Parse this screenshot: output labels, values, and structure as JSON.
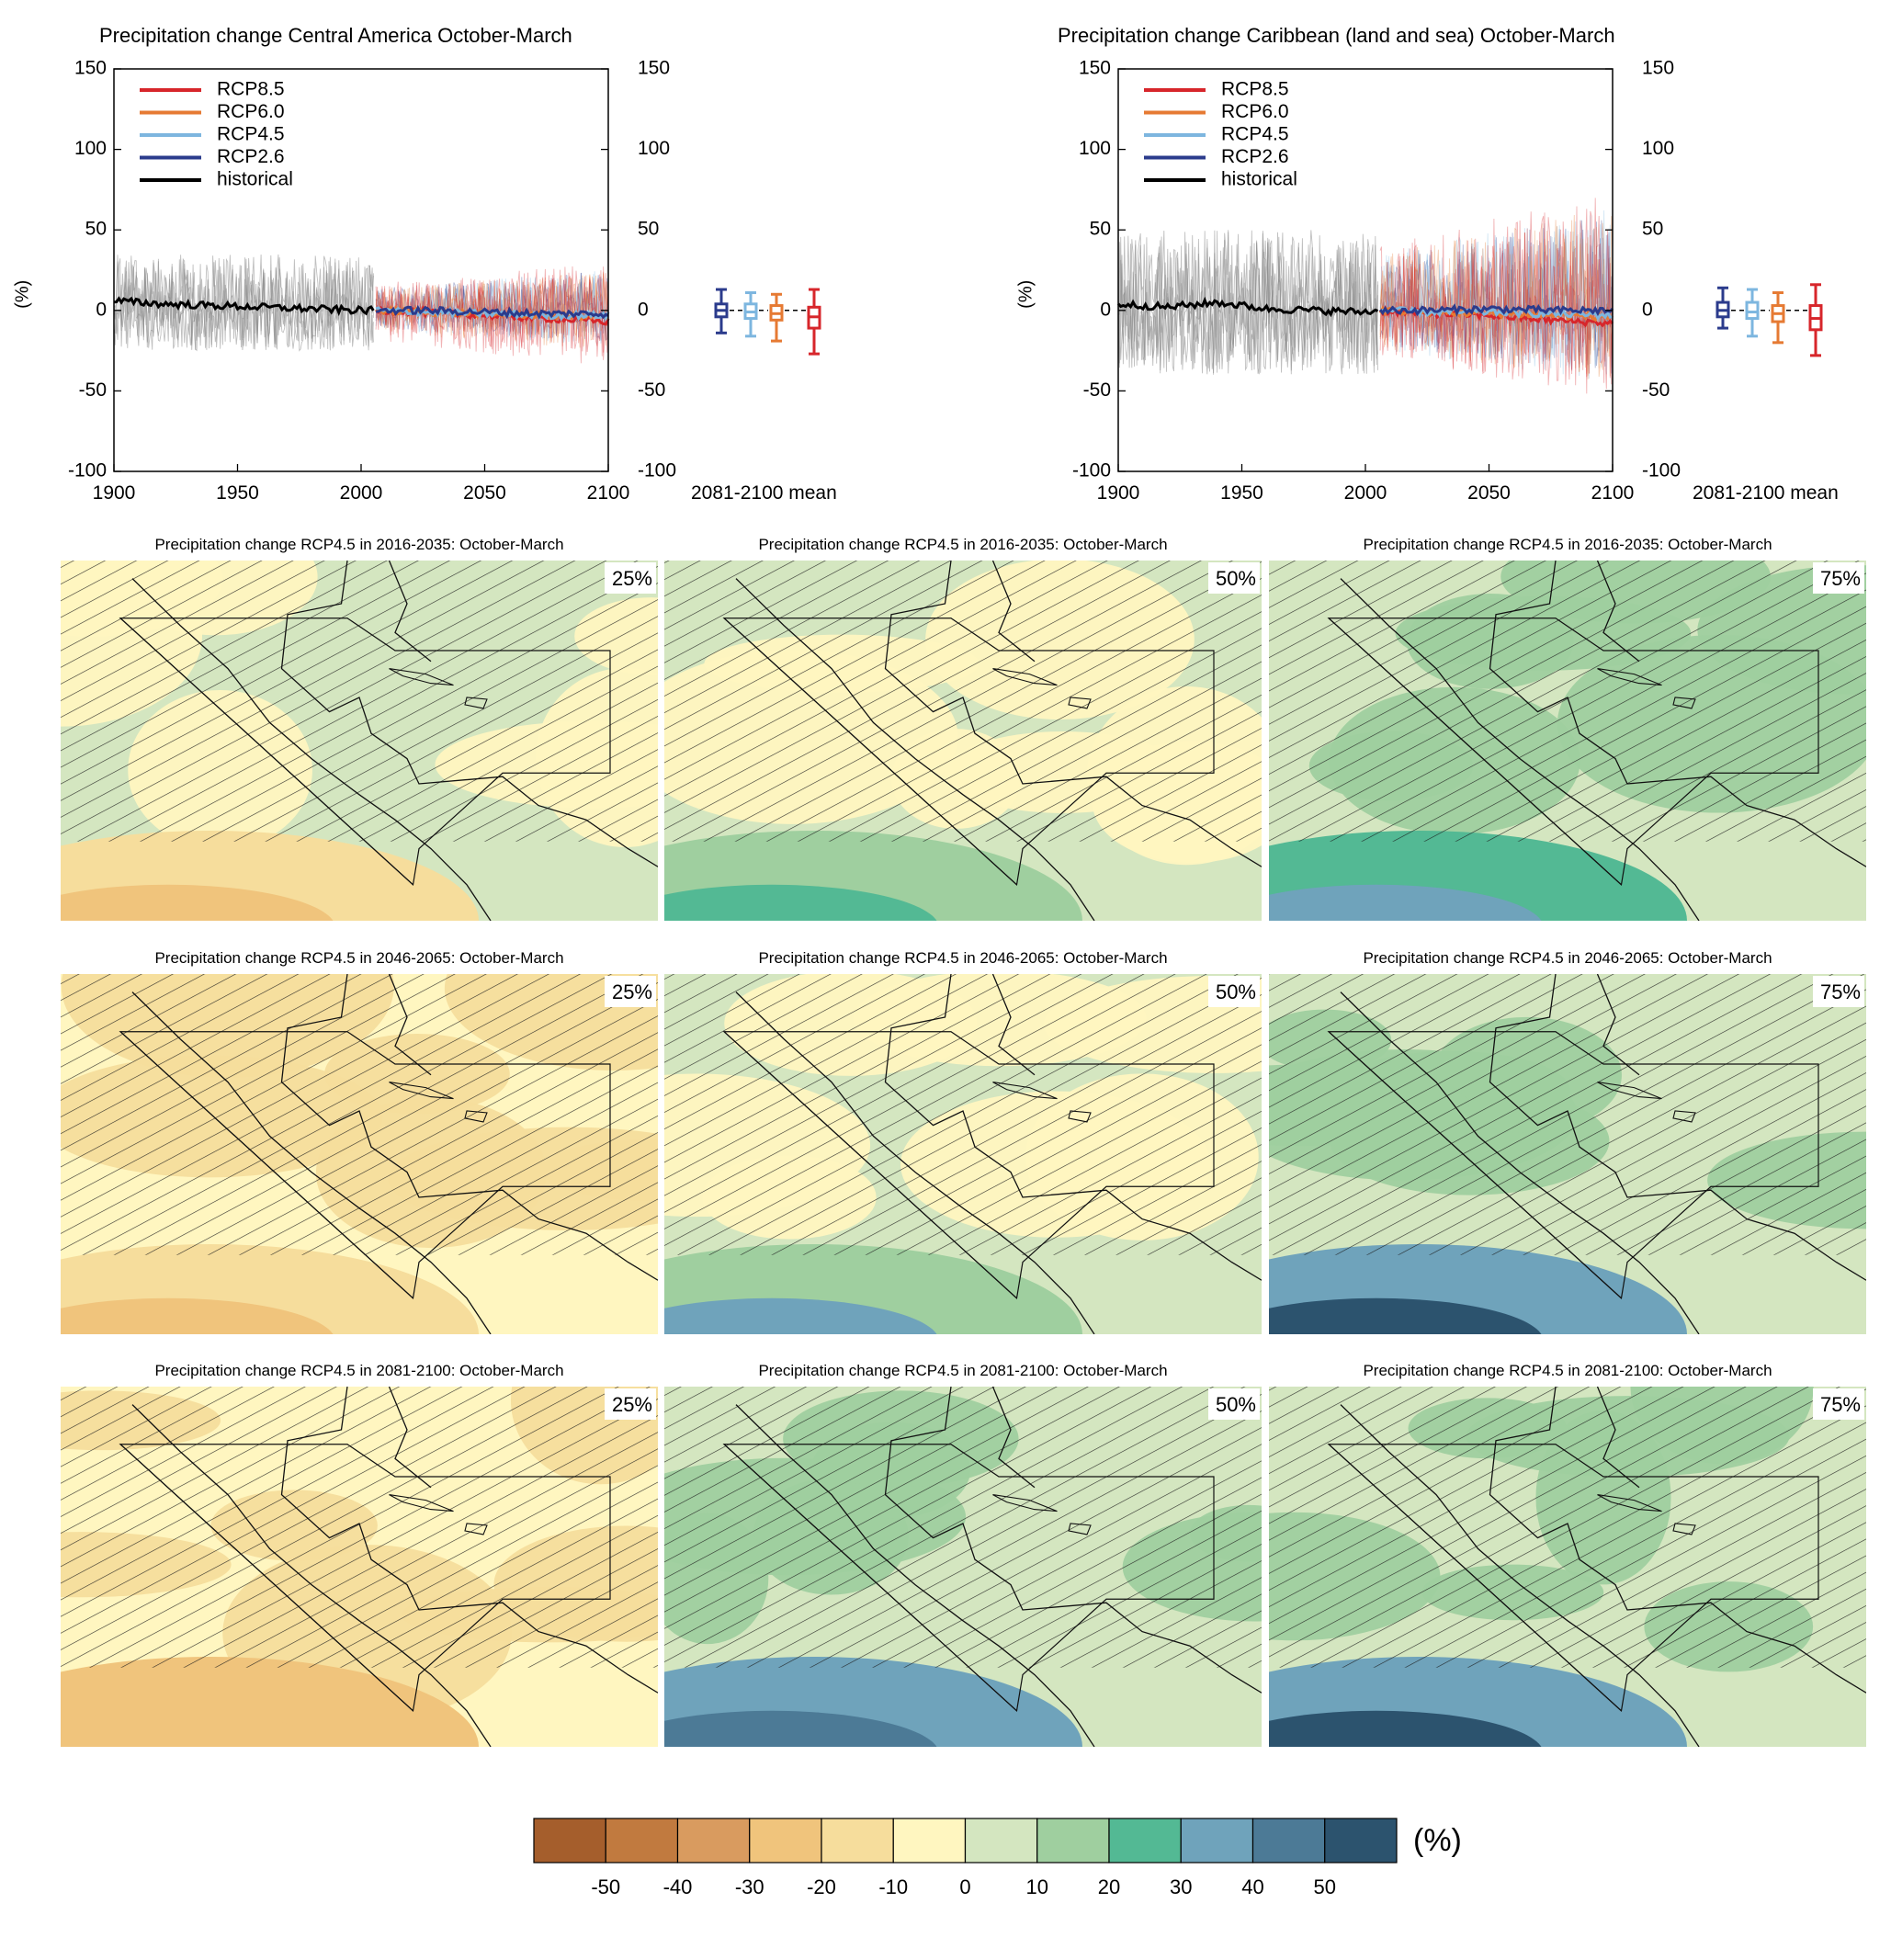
{
  "colors": {
    "RCP8.5": "#d7262b",
    "RCP6.0": "#e67a33",
    "RCP4.5": "#7db6df",
    "RCP2.6": "#2b3b8c",
    "historical": "#000000",
    "historical_spread": "#8c8c8c"
  },
  "chart_data": [
    {
      "type": "line",
      "title": "Precipitation change Central America October-March",
      "ylabel": "(%)",
      "xlim": [
        1900,
        2100
      ],
      "ylim": [
        -100,
        150
      ],
      "x_ticks": [
        "1900",
        "1950",
        "2000",
        "2050",
        "2100"
      ],
      "y_ticks": [
        "150",
        "100",
        "50",
        "0",
        "-50",
        "-100"
      ],
      "legend_position": "top-left",
      "legend": [
        "RCP8.5",
        "RCP6.0",
        "RCP4.5",
        "RCP2.6",
        "historical"
      ],
      "series": [
        {
          "name": "historical",
          "x": [
            1900,
            1920,
            1940,
            1960,
            1980,
            2000,
            2005
          ],
          "values": [
            6,
            4,
            3,
            2,
            1,
            0,
            0
          ],
          "spread": [
            -25,
            35
          ]
        },
        {
          "name": "RCP2.6",
          "x": [
            2006,
            2025,
            2050,
            2075,
            2100
          ],
          "values": [
            0,
            0,
            -1,
            -2,
            -2
          ],
          "spread": [
            -20,
            25
          ]
        },
        {
          "name": "RCP4.5",
          "x": [
            2006,
            2025,
            2050,
            2075,
            2100
          ],
          "values": [
            0,
            -1,
            -2,
            -3,
            -3
          ],
          "spread": [
            -22,
            25
          ]
        },
        {
          "name": "RCP6.0",
          "x": [
            2006,
            2025,
            2050,
            2075,
            2100
          ],
          "values": [
            0,
            -1,
            -2,
            -3,
            -4
          ],
          "spread": [
            -25,
            25
          ]
        },
        {
          "name": "RCP8.5",
          "x": [
            2006,
            2025,
            2050,
            2075,
            2100
          ],
          "values": [
            0,
            -1,
            -3,
            -5,
            -7
          ],
          "spread": [
            -35,
            30
          ]
        }
      ],
      "boxplot_label": "2081-2100 mean",
      "boxplots": [
        {
          "name": "RCP2.6",
          "min": -14,
          "q1": -4,
          "median": 0,
          "q3": 4,
          "max": 13
        },
        {
          "name": "RCP4.5",
          "min": -16,
          "q1": -5,
          "median": -1,
          "q3": 4,
          "max": 11
        },
        {
          "name": "RCP6.0",
          "min": -19,
          "q1": -6,
          "median": -2,
          "q3": 3,
          "max": 10
        },
        {
          "name": "RCP8.5",
          "min": -27,
          "q1": -11,
          "median": -4,
          "q3": 2,
          "max": 13
        }
      ]
    },
    {
      "type": "line",
      "title": "Precipitation change Caribbean (land and sea) October-March",
      "ylabel": "(%)",
      "xlim": [
        1900,
        2100
      ],
      "ylim": [
        -100,
        150
      ],
      "x_ticks": [
        "1900",
        "1950",
        "2000",
        "2050",
        "2100"
      ],
      "y_ticks": [
        "150",
        "100",
        "50",
        "0",
        "-50",
        "-100"
      ],
      "legend_position": "top-left",
      "legend": [
        "RCP8.5",
        "RCP6.0",
        "RCP4.5",
        "RCP2.6",
        "historical"
      ],
      "series": [
        {
          "name": "historical",
          "x": [
            1900,
            1920,
            1940,
            1960,
            1980,
            2000,
            2005
          ],
          "values": [
            4,
            2,
            5,
            1,
            0,
            -1,
            0
          ],
          "spread": [
            -40,
            50
          ]
        },
        {
          "name": "RCP2.6",
          "x": [
            2006,
            2025,
            2050,
            2075,
            2100
          ],
          "values": [
            0,
            0,
            1,
            0,
            0
          ],
          "spread": [
            -40,
            60
          ]
        },
        {
          "name": "RCP4.5",
          "x": [
            2006,
            2025,
            2050,
            2075,
            2100
          ],
          "values": [
            0,
            -1,
            -1,
            -2,
            -3
          ],
          "spread": [
            -45,
            65
          ]
        },
        {
          "name": "RCP6.0",
          "x": [
            2006,
            2025,
            2050,
            2075,
            2100
          ],
          "values": [
            0,
            -1,
            -2,
            -3,
            -4
          ],
          "spread": [
            -45,
            65
          ]
        },
        {
          "name": "RCP8.5",
          "x": [
            2006,
            2025,
            2050,
            2075,
            2100
          ],
          "values": [
            0,
            -2,
            -3,
            -6,
            -8
          ],
          "spread": [
            -55,
            75
          ]
        }
      ],
      "boxplot_label": "2081-2100 mean",
      "boxplots": [
        {
          "name": "RCP2.6",
          "min": -11,
          "q1": -4,
          "median": 0,
          "q3": 5,
          "max": 14
        },
        {
          "name": "RCP4.5",
          "min": -16,
          "q1": -5,
          "median": -1,
          "q3": 5,
          "max": 13
        },
        {
          "name": "RCP6.0",
          "min": -20,
          "q1": -7,
          "median": -2,
          "q3": 3,
          "max": 11
        },
        {
          "name": "RCP8.5",
          "min": -28,
          "q1": -12,
          "median": -5,
          "q3": 3,
          "max": 16
        }
      ]
    },
    {
      "type": "heatmap",
      "panels": [
        {
          "title": "Precipitation change RCP4.5 in 2016-2035: October-March",
          "percentile": "25%"
        },
        {
          "title": "Precipitation change RCP4.5 in 2016-2035: October-March",
          "percentile": "50%"
        },
        {
          "title": "Precipitation change RCP4.5 in 2016-2035: October-March",
          "percentile": "75%"
        },
        {
          "title": "Precipitation change RCP4.5 in 2046-2065: October-March",
          "percentile": "25%"
        },
        {
          "title": "Precipitation change RCP4.5 in 2046-2065: October-March",
          "percentile": "50%"
        },
        {
          "title": "Precipitation change RCP4.5 in 2046-2065: October-March",
          "percentile": "75%"
        },
        {
          "title": "Precipitation change RCP4.5 in 2081-2100: October-March",
          "percentile": "25%"
        },
        {
          "title": "Precipitation change RCP4.5 in 2081-2100: October-March",
          "percentile": "50%"
        },
        {
          "title": "Precipitation change RCP4.5 in 2081-2100: October-March",
          "percentile": "75%"
        }
      ],
      "colorbar": {
        "unit": "(%)",
        "ticks": [
          "-50",
          "-40",
          "-30",
          "-20",
          "-10",
          "0",
          "10",
          "20",
          "30",
          "40",
          "50"
        ],
        "colors": [
          "#a55e2c",
          "#c17a3f",
          "#d99b5f",
          "#f0c47c",
          "#f6dd9c",
          "#fff6c0",
          "#d4e6c0",
          "#9fcf9f",
          "#53b994",
          "#6fa3bb",
          "#4c7a96",
          "#2c536e"
        ]
      }
    }
  ]
}
